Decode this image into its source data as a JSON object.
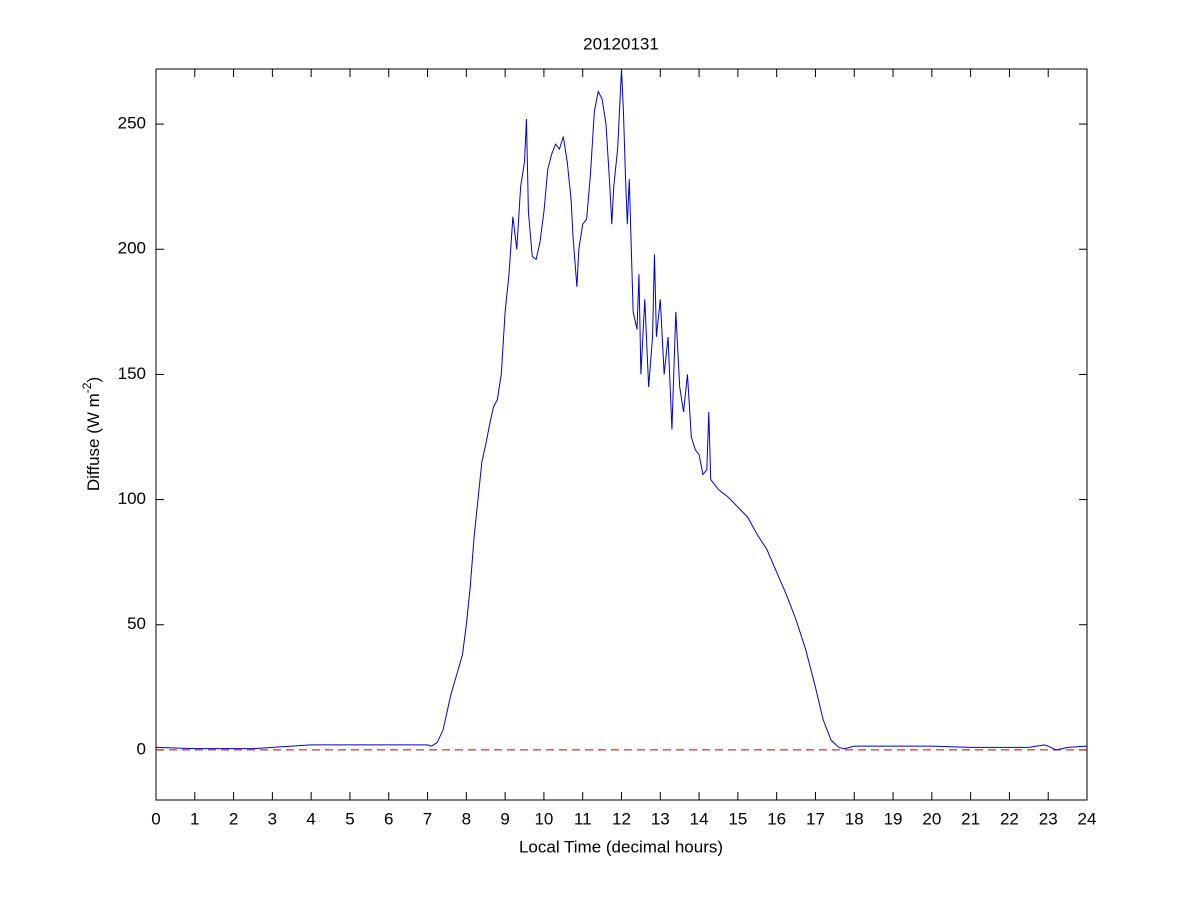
{
  "chart_data": {
    "type": "line",
    "title": "20120131",
    "xlabel": "Local Time (decimal hours)",
    "ylabel": {
      "text": "Diffuse (W m",
      "superscript": "-2",
      "suffix": ")"
    },
    "xlim": [
      0,
      24
    ],
    "ylim": [
      -20,
      272
    ],
    "xticks": [
      0,
      1,
      2,
      3,
      4,
      5,
      6,
      7,
      8,
      9,
      10,
      11,
      12,
      13,
      14,
      15,
      16,
      17,
      18,
      19,
      20,
      21,
      22,
      23,
      24
    ],
    "yticks": [
      0,
      50,
      100,
      150,
      200,
      250
    ],
    "reference_line": {
      "value": 0,
      "color": "#cc0000"
    },
    "series": [
      {
        "color": "#0000cc",
        "x": [
          0,
          1,
          2,
          2.5,
          3,
          3.5,
          4,
          5,
          6,
          7,
          7.1,
          7.25,
          7.4,
          7.5,
          7.6,
          7.75,
          7.9,
          8,
          8.1,
          8.2,
          8.3,
          8.4,
          8.5,
          8.6,
          8.7,
          8.8,
          8.9,
          9,
          9.1,
          9.2,
          9.3,
          9.4,
          9.5,
          9.55,
          9.6,
          9.7,
          9.8,
          9.9,
          10,
          10.1,
          10.2,
          10.3,
          10.4,
          10.5,
          10.6,
          10.7,
          10.75,
          10.8,
          10.85,
          10.9,
          11,
          11.1,
          11.2,
          11.3,
          11.4,
          11.5,
          11.6,
          11.7,
          11.75,
          11.8,
          11.9,
          12,
          12.05,
          12.1,
          12.15,
          12.2,
          12.3,
          12.4,
          12.45,
          12.5,
          12.6,
          12.7,
          12.8,
          12.85,
          12.9,
          13,
          13.1,
          13.2,
          13.3,
          13.4,
          13.5,
          13.6,
          13.7,
          13.8,
          13.9,
          14,
          14.1,
          14.2,
          14.25,
          14.3,
          14.5,
          14.75,
          15,
          15.25,
          15.5,
          15.75,
          16,
          16.25,
          16.5,
          16.75,
          17,
          17.2,
          17.4,
          17.6,
          17.75,
          18,
          19,
          20,
          21,
          22,
          22.5,
          22.9,
          23,
          23.2,
          23.5,
          24
        ],
        "values": [
          1,
          0.5,
          0.5,
          0.5,
          1,
          1.5,
          2,
          2,
          2,
          2,
          1.5,
          3,
          8,
          15,
          22,
          30,
          38,
          50,
          65,
          85,
          100,
          115,
          122,
          130,
          137,
          140,
          150,
          175,
          190,
          213,
          200,
          225,
          235,
          252,
          215,
          197,
          196,
          203,
          215,
          232,
          238,
          242,
          240,
          245,
          235,
          220,
          205,
          195,
          185,
          200,
          210,
          212,
          230,
          255,
          263,
          260,
          250,
          225,
          210,
          225,
          240,
          272,
          255,
          230,
          210,
          228,
          175,
          168,
          190,
          150,
          180,
          145,
          165,
          198,
          165,
          180,
          150,
          165,
          128,
          175,
          145,
          135,
          150,
          125,
          120,
          118,
          110,
          112,
          135,
          108,
          104,
          101,
          97,
          93,
          86,
          80,
          71,
          62,
          52,
          40,
          25,
          12,
          4,
          1,
          0.5,
          1.5,
          1.5,
          1.5,
          1,
          1,
          1,
          2,
          1.5,
          0,
          1,
          1.5
        ]
      }
    ]
  }
}
